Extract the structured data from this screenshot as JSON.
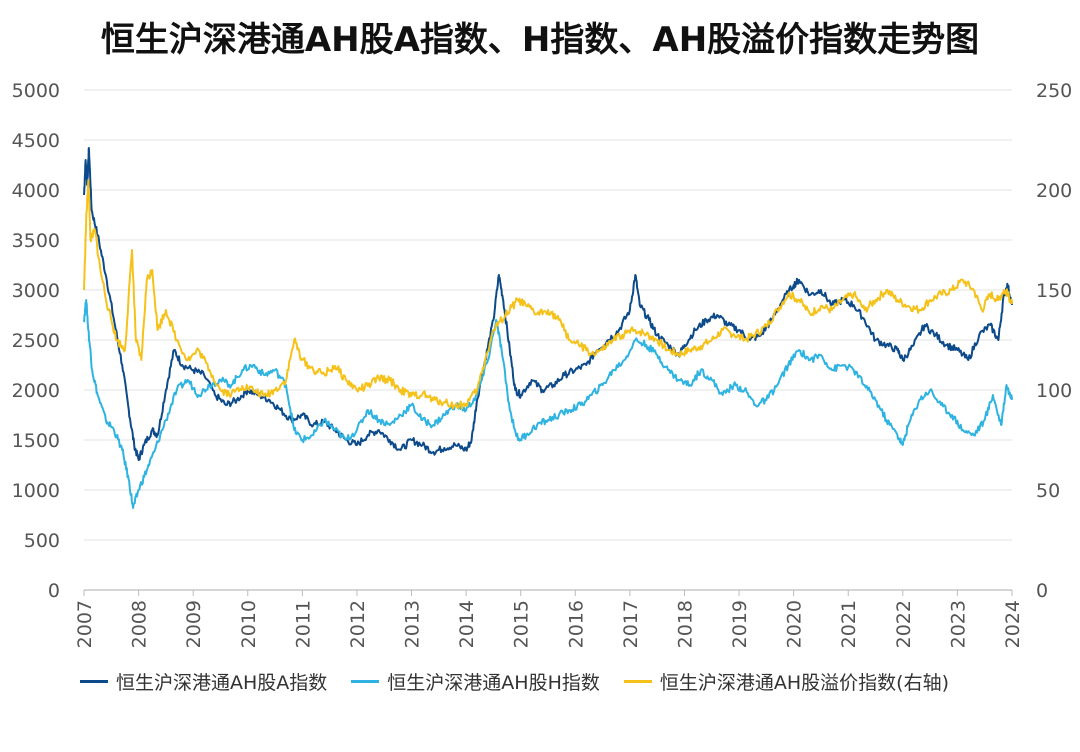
{
  "chart_data": {
    "type": "line",
    "title": "恒生沪深港通AH股A指数、H指数、AH股溢价指数走势图",
    "xlabel": "",
    "ylabel": "",
    "xlim": [
      2007,
      2024
    ],
    "ylim_left": [
      0,
      5000
    ],
    "ylim_right": [
      0,
      250
    ],
    "left_ticks": [
      "0",
      "500",
      "1000",
      "1500",
      "2000",
      "2500",
      "3000",
      "3500",
      "4000",
      "4500",
      "5000"
    ],
    "right_ticks": [
      "0",
      "50",
      "100",
      "150",
      "200",
      "250"
    ],
    "x_ticks": [
      "2007",
      "2008",
      "2009",
      "2010",
      "2011",
      "2012",
      "2013",
      "2014",
      "2015",
      "2016",
      "2017",
      "2018",
      "2019",
      "2020",
      "2021",
      "2022",
      "2023",
      "2024"
    ],
    "grid": true,
    "legend_position": "bottom",
    "series": [
      {
        "name": "恒生沪深港通AH股A指数",
        "axis": "left",
        "color": "#0d4a8a",
        "points": [
          [
            2007.0,
            3950
          ],
          [
            2007.03,
            4300
          ],
          [
            2007.06,
            4050
          ],
          [
            2007.09,
            4420
          ],
          [
            2007.14,
            3800
          ],
          [
            2007.25,
            3550
          ],
          [
            2007.4,
            3150
          ],
          [
            2007.55,
            2700
          ],
          [
            2007.7,
            2250
          ],
          [
            2007.82,
            1800
          ],
          [
            2007.92,
            1450
          ],
          [
            2008.0,
            1300
          ],
          [
            2008.1,
            1450
          ],
          [
            2008.25,
            1600
          ],
          [
            2008.35,
            1550
          ],
          [
            2008.5,
            2000
          ],
          [
            2008.65,
            2400
          ],
          [
            2008.8,
            2250
          ],
          [
            2009.0,
            2200
          ],
          [
            2009.2,
            2150
          ],
          [
            2009.4,
            1950
          ],
          [
            2009.6,
            1850
          ],
          [
            2009.8,
            1900
          ],
          [
            2010.0,
            2000
          ],
          [
            2010.2,
            1950
          ],
          [
            2010.4,
            1900
          ],
          [
            2010.6,
            1800
          ],
          [
            2010.8,
            1700
          ],
          [
            2011.0,
            1750
          ],
          [
            2011.2,
            1650
          ],
          [
            2011.4,
            1680
          ],
          [
            2011.6,
            1600
          ],
          [
            2011.8,
            1500
          ],
          [
            2012.0,
            1450
          ],
          [
            2012.2,
            1550
          ],
          [
            2012.4,
            1600
          ],
          [
            2012.6,
            1500
          ],
          [
            2012.8,
            1400
          ],
          [
            2013.0,
            1500
          ],
          [
            2013.2,
            1450
          ],
          [
            2013.4,
            1380
          ],
          [
            2013.6,
            1420
          ],
          [
            2013.8,
            1450
          ],
          [
            2014.0,
            1400
          ],
          [
            2014.1,
            1500
          ],
          [
            2014.2,
            1900
          ],
          [
            2014.35,
            2300
          ],
          [
            2014.5,
            2700
          ],
          [
            2014.6,
            3150
          ],
          [
            2014.68,
            2900
          ],
          [
            2014.8,
            2400
          ],
          [
            2014.9,
            2000
          ],
          [
            2015.0,
            1950
          ],
          [
            2015.2,
            2100
          ],
          [
            2015.4,
            2000
          ],
          [
            2015.6,
            2050
          ],
          [
            2015.8,
            2150
          ],
          [
            2016.0,
            2200
          ],
          [
            2016.2,
            2250
          ],
          [
            2016.4,
            2400
          ],
          [
            2016.6,
            2500
          ],
          [
            2016.8,
            2600
          ],
          [
            2017.0,
            2800
          ],
          [
            2017.1,
            3150
          ],
          [
            2017.18,
            2850
          ],
          [
            2017.35,
            2700
          ],
          [
            2017.5,
            2550
          ],
          [
            2017.7,
            2450
          ],
          [
            2017.9,
            2350
          ],
          [
            2018.0,
            2450
          ],
          [
            2018.2,
            2600
          ],
          [
            2018.4,
            2700
          ],
          [
            2018.6,
            2750
          ],
          [
            2018.8,
            2650
          ],
          [
            2019.0,
            2600
          ],
          [
            2019.2,
            2500
          ],
          [
            2019.4,
            2550
          ],
          [
            2019.6,
            2700
          ],
          [
            2019.8,
            2900
          ],
          [
            2020.0,
            3050
          ],
          [
            2020.1,
            3100
          ],
          [
            2020.3,
            2950
          ],
          [
            2020.5,
            3000
          ],
          [
            2020.7,
            2850
          ],
          [
            2020.9,
            2900
          ],
          [
            2021.1,
            2850
          ],
          [
            2021.3,
            2700
          ],
          [
            2021.5,
            2500
          ],
          [
            2021.7,
            2450
          ],
          [
            2021.9,
            2400
          ],
          [
            2022.0,
            2300
          ],
          [
            2022.2,
            2450
          ],
          [
            2022.4,
            2650
          ],
          [
            2022.6,
            2550
          ],
          [
            2022.8,
            2450
          ],
          [
            2023.0,
            2400
          ],
          [
            2023.2,
            2300
          ],
          [
            2023.4,
            2550
          ],
          [
            2023.6,
            2650
          ],
          [
            2023.75,
            2500
          ],
          [
            2023.85,
            2950
          ],
          [
            2023.92,
            3050
          ],
          [
            2024.0,
            2850
          ]
        ]
      },
      {
        "name": "恒生沪深港通AH股H指数",
        "axis": "left",
        "color": "#2fb3e0",
        "points": [
          [
            2007.0,
            2700
          ],
          [
            2007.04,
            2900
          ],
          [
            2007.08,
            2600
          ],
          [
            2007.15,
            2200
          ],
          [
            2007.25,
            1950
          ],
          [
            2007.4,
            1700
          ],
          [
            2007.55,
            1600
          ],
          [
            2007.7,
            1400
          ],
          [
            2007.82,
            1100
          ],
          [
            2007.9,
            820
          ],
          [
            2008.0,
            1000
          ],
          [
            2008.15,
            1200
          ],
          [
            2008.3,
            1400
          ],
          [
            2008.5,
            1700
          ],
          [
            2008.7,
            2000
          ],
          [
            2008.9,
            2100
          ],
          [
            2009.1,
            1950
          ],
          [
            2009.3,
            2050
          ],
          [
            2009.5,
            2100
          ],
          [
            2009.7,
            2050
          ],
          [
            2009.9,
            2200
          ],
          [
            2010.1,
            2250
          ],
          [
            2010.3,
            2150
          ],
          [
            2010.5,
            2200
          ],
          [
            2010.7,
            2050
          ],
          [
            2010.85,
            1600
          ],
          [
            2011.0,
            1500
          ],
          [
            2011.2,
            1550
          ],
          [
            2011.4,
            1700
          ],
          [
            2011.6,
            1600
          ],
          [
            2011.8,
            1500
          ],
          [
            2012.0,
            1600
          ],
          [
            2012.2,
            1800
          ],
          [
            2012.4,
            1700
          ],
          [
            2012.6,
            1650
          ],
          [
            2012.8,
            1750
          ],
          [
            2013.0,
            1850
          ],
          [
            2013.2,
            1700
          ],
          [
            2013.4,
            1650
          ],
          [
            2013.6,
            1750
          ],
          [
            2013.8,
            1850
          ],
          [
            2014.0,
            1800
          ],
          [
            2014.2,
            1950
          ],
          [
            2014.4,
            2300
          ],
          [
            2014.55,
            2700
          ],
          [
            2014.65,
            2400
          ],
          [
            2014.8,
            1800
          ],
          [
            2014.95,
            1500
          ],
          [
            2015.1,
            1550
          ],
          [
            2015.3,
            1650
          ],
          [
            2015.5,
            1700
          ],
          [
            2015.7,
            1750
          ],
          [
            2015.9,
            1800
          ],
          [
            2016.1,
            1850
          ],
          [
            2016.3,
            1950
          ],
          [
            2016.5,
            2050
          ],
          [
            2016.7,
            2200
          ],
          [
            2016.9,
            2300
          ],
          [
            2017.1,
            2500
          ],
          [
            2017.3,
            2450
          ],
          [
            2017.5,
            2350
          ],
          [
            2017.7,
            2200
          ],
          [
            2017.9,
            2100
          ],
          [
            2018.1,
            2050
          ],
          [
            2018.3,
            2200
          ],
          [
            2018.5,
            2100
          ],
          [
            2018.7,
            1950
          ],
          [
            2018.9,
            2050
          ],
          [
            2019.1,
            2000
          ],
          [
            2019.3,
            1850
          ],
          [
            2019.5,
            1900
          ],
          [
            2019.7,
            2050
          ],
          [
            2019.9,
            2250
          ],
          [
            2020.1,
            2400
          ],
          [
            2020.3,
            2300
          ],
          [
            2020.5,
            2350
          ],
          [
            2020.7,
            2200
          ],
          [
            2020.9,
            2250
          ],
          [
            2021.1,
            2200
          ],
          [
            2021.3,
            2050
          ],
          [
            2021.5,
            1900
          ],
          [
            2021.7,
            1700
          ],
          [
            2021.9,
            1550
          ],
          [
            2022.0,
            1450
          ],
          [
            2022.1,
            1650
          ],
          [
            2022.3,
            1900
          ],
          [
            2022.5,
            2000
          ],
          [
            2022.7,
            1850
          ],
          [
            2022.9,
            1750
          ],
          [
            2023.1,
            1600
          ],
          [
            2023.3,
            1550
          ],
          [
            2023.5,
            1700
          ],
          [
            2023.65,
            1950
          ],
          [
            2023.8,
            1650
          ],
          [
            2023.9,
            2050
          ],
          [
            2024.0,
            1900
          ]
        ]
      },
      {
        "name": "恒生沪深港通AH股溢价指数(右轴)",
        "axis": "right",
        "color": "#f5c21b",
        "points": [
          [
            2007.0,
            150
          ],
          [
            2007.04,
            185
          ],
          [
            2007.08,
            205
          ],
          [
            2007.12,
            175
          ],
          [
            2007.2,
            180
          ],
          [
            2007.3,
            160
          ],
          [
            2007.45,
            140
          ],
          [
            2007.6,
            125
          ],
          [
            2007.75,
            120
          ],
          [
            2007.88,
            170
          ],
          [
            2007.95,
            125
          ],
          [
            2008.05,
            115
          ],
          [
            2008.15,
            155
          ],
          [
            2008.25,
            160
          ],
          [
            2008.35,
            130
          ],
          [
            2008.5,
            140
          ],
          [
            2008.7,
            125
          ],
          [
            2008.9,
            115
          ],
          [
            2009.1,
            120
          ],
          [
            2009.3,
            110
          ],
          [
            2009.5,
            100
          ],
          [
            2009.7,
            98
          ],
          [
            2009.9,
            102
          ],
          [
            2010.1,
            100
          ],
          [
            2010.3,
            97
          ],
          [
            2010.5,
            100
          ],
          [
            2010.7,
            105
          ],
          [
            2010.85,
            125
          ],
          [
            2011.0,
            115
          ],
          [
            2011.2,
            110
          ],
          [
            2011.4,
            108
          ],
          [
            2011.6,
            112
          ],
          [
            2011.8,
            105
          ],
          [
            2012.0,
            100
          ],
          [
            2012.2,
            102
          ],
          [
            2012.4,
            106
          ],
          [
            2012.6,
            105
          ],
          [
            2012.8,
            100
          ],
          [
            2013.0,
            97
          ],
          [
            2013.2,
            98
          ],
          [
            2013.4,
            95
          ],
          [
            2013.6,
            94
          ],
          [
            2013.8,
            92
          ],
          [
            2014.0,
            93
          ],
          [
            2014.2,
            100
          ],
          [
            2014.35,
            115
          ],
          [
            2014.5,
            130
          ],
          [
            2014.65,
            135
          ],
          [
            2014.8,
            140
          ],
          [
            2014.95,
            145
          ],
          [
            2015.1,
            142
          ],
          [
            2015.3,
            138
          ],
          [
            2015.5,
            140
          ],
          [
            2015.7,
            135
          ],
          [
            2015.9,
            125
          ],
          [
            2016.1,
            122
          ],
          [
            2016.3,
            118
          ],
          [
            2016.5,
            120
          ],
          [
            2016.7,
            125
          ],
          [
            2016.9,
            128
          ],
          [
            2017.1,
            130
          ],
          [
            2017.3,
            128
          ],
          [
            2017.5,
            125
          ],
          [
            2017.7,
            120
          ],
          [
            2017.9,
            118
          ],
          [
            2018.1,
            120
          ],
          [
            2018.3,
            122
          ],
          [
            2018.5,
            125
          ],
          [
            2018.7,
            130
          ],
          [
            2018.9,
            128
          ],
          [
            2019.1,
            125
          ],
          [
            2019.3,
            128
          ],
          [
            2019.5,
            132
          ],
          [
            2019.7,
            140
          ],
          [
            2019.9,
            148
          ],
          [
            2020.1,
            145
          ],
          [
            2020.3,
            138
          ],
          [
            2020.5,
            142
          ],
          [
            2020.7,
            140
          ],
          [
            2020.9,
            145
          ],
          [
            2021.1,
            148
          ],
          [
            2021.3,
            140
          ],
          [
            2021.5,
            145
          ],
          [
            2021.7,
            150
          ],
          [
            2021.9,
            145
          ],
          [
            2022.1,
            142
          ],
          [
            2022.3,
            140
          ],
          [
            2022.5,
            145
          ],
          [
            2022.7,
            148
          ],
          [
            2022.9,
            150
          ],
          [
            2023.1,
            155
          ],
          [
            2023.3,
            150
          ],
          [
            2023.45,
            140
          ],
          [
            2023.6,
            148
          ],
          [
            2023.75,
            145
          ],
          [
            2023.85,
            150
          ],
          [
            2023.92,
            148
          ],
          [
            2024.0,
            143
          ]
        ]
      }
    ]
  }
}
